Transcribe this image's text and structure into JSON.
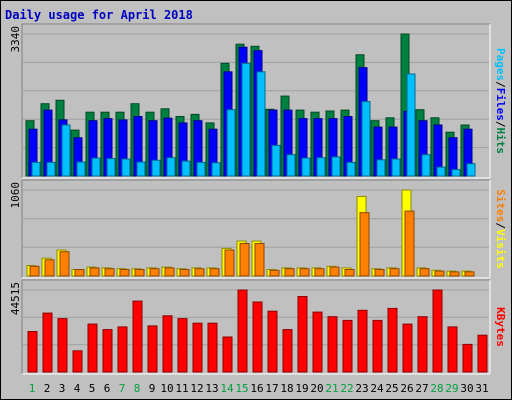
{
  "window": {
    "title": "Daily usage for April 2018"
  },
  "chart_data": [
    {
      "type": "bar",
      "panel": "pages-files-hits",
      "ymax_label": "3340",
      "ylim": [
        0,
        3340
      ],
      "series_labels": [
        "Pages",
        "Files",
        "Hits"
      ],
      "colors": {
        "Pages": "#00c0ff",
        "Files": "#0000ff",
        "Hits": "#008040"
      },
      "categories": [
        "1",
        "2",
        "3",
        "4",
        "5",
        "6",
        "7",
        "8",
        "9",
        "10",
        "11",
        "12",
        "13",
        "14",
        "15",
        "16",
        "17",
        "18",
        "19",
        "20",
        "21",
        "22",
        "23",
        "24",
        "25",
        "26",
        "27",
        "28",
        "29",
        "30",
        "31"
      ],
      "series": [
        {
          "name": "Hits",
          "values": [
            1300,
            1700,
            1780,
            1080,
            1500,
            1500,
            1500,
            1700,
            1500,
            1580,
            1400,
            1450,
            1250,
            2650,
            3100,
            3050,
            1570,
            1880,
            1550,
            1500,
            1530,
            1550,
            2850,
            1300,
            1370,
            3400,
            1560,
            1370,
            1030,
            1200,
            0
          ]
        },
        {
          "name": "Files",
          "values": [
            1100,
            1550,
            1320,
            900,
            1300,
            1350,
            1320,
            1400,
            1300,
            1360,
            1250,
            1300,
            1100,
            2450,
            3030,
            2950,
            1550,
            1550,
            1350,
            1350,
            1350,
            1400,
            2550,
            1150,
            1150,
            1520,
            1300,
            1200,
            900,
            1100,
            0
          ]
        },
        {
          "name": "Pages",
          "values": [
            320,
            320,
            1200,
            330,
            420,
            410,
            400,
            330,
            370,
            430,
            350,
            320,
            310,
            1560,
            2650,
            2450,
            720,
            500,
            420,
            430,
            450,
            320,
            1750,
            380,
            400,
            2400,
            500,
            210,
            150,
            290,
            0
          ]
        }
      ]
    },
    {
      "type": "bar",
      "panel": "sites-visits",
      "ymax_label": "1060",
      "ylim": [
        0,
        1060
      ],
      "series_labels": [
        "Sites",
        "Visits"
      ],
      "colors": {
        "Sites": "#ff8000",
        "Visits": "#ffff00"
      },
      "categories": [
        "1",
        "2",
        "3",
        "4",
        "5",
        "6",
        "7",
        "8",
        "9",
        "10",
        "11",
        "12",
        "13",
        "14",
        "15",
        "16",
        "17",
        "18",
        "19",
        "20",
        "21",
        "22",
        "23",
        "24",
        "25",
        "26",
        "27",
        "28",
        "29",
        "30",
        "31"
      ],
      "series": [
        {
          "name": "Visits",
          "values": [
            130,
            220,
            320,
            80,
            110,
            100,
            90,
            90,
            100,
            110,
            90,
            100,
            100,
            340,
            430,
            430,
            80,
            100,
            100,
            100,
            120,
            100,
            980,
            90,
            100,
            1060,
            100,
            70,
            60,
            60,
            0
          ]
        },
        {
          "name": "Sites",
          "values": [
            120,
            200,
            300,
            80,
            100,
            90,
            80,
            80,
            90,
            100,
            80,
            90,
            90,
            320,
            400,
            400,
            70,
            90,
            90,
            90,
            110,
            80,
            780,
            80,
            90,
            800,
            90,
            60,
            50,
            50,
            0
          ]
        }
      ]
    },
    {
      "type": "bar",
      "panel": "kbytes",
      "ymax_label": "44515",
      "ylim": [
        0,
        44515
      ],
      "series_labels": [
        "KBytes"
      ],
      "colors": {
        "KBytes": "#ff0000"
      },
      "categories": [
        "1",
        "2",
        "3",
        "4",
        "5",
        "6",
        "7",
        "8",
        "9",
        "10",
        "11",
        "12",
        "13",
        "14",
        "15",
        "16",
        "17",
        "18",
        "19",
        "20",
        "21",
        "22",
        "23",
        "24",
        "25",
        "26",
        "27",
        "28",
        "29",
        "30",
        "31"
      ],
      "series": [
        {
          "name": "KBytes",
          "values": [
            22000,
            32000,
            29000,
            11500,
            26000,
            23000,
            24500,
            38500,
            25000,
            30500,
            29000,
            26500,
            26500,
            19000,
            45500,
            38000,
            33000,
            23000,
            41000,
            32500,
            30000,
            28000,
            33500,
            28000,
            34500,
            26000,
            30000,
            45000,
            24500,
            15000,
            20000
          ]
        }
      ]
    }
  ],
  "xaxis": {
    "labels": [
      "1",
      "2",
      "3",
      "4",
      "5",
      "6",
      "7",
      "8",
      "9",
      "10",
      "11",
      "12",
      "13",
      "14",
      "15",
      "16",
      "17",
      "18",
      "19",
      "20",
      "21",
      "22",
      "23",
      "24",
      "25",
      "26",
      "27",
      "28",
      "29",
      "30",
      "31"
    ],
    "weekend_days": [
      "1",
      "7",
      "8",
      "14",
      "15",
      "21",
      "22",
      "28",
      "29"
    ],
    "weekday_color": "#000000",
    "weekend_color": "#00a040"
  },
  "side_label_colors": {
    "sep": "#000000"
  },
  "side_sep": "/"
}
